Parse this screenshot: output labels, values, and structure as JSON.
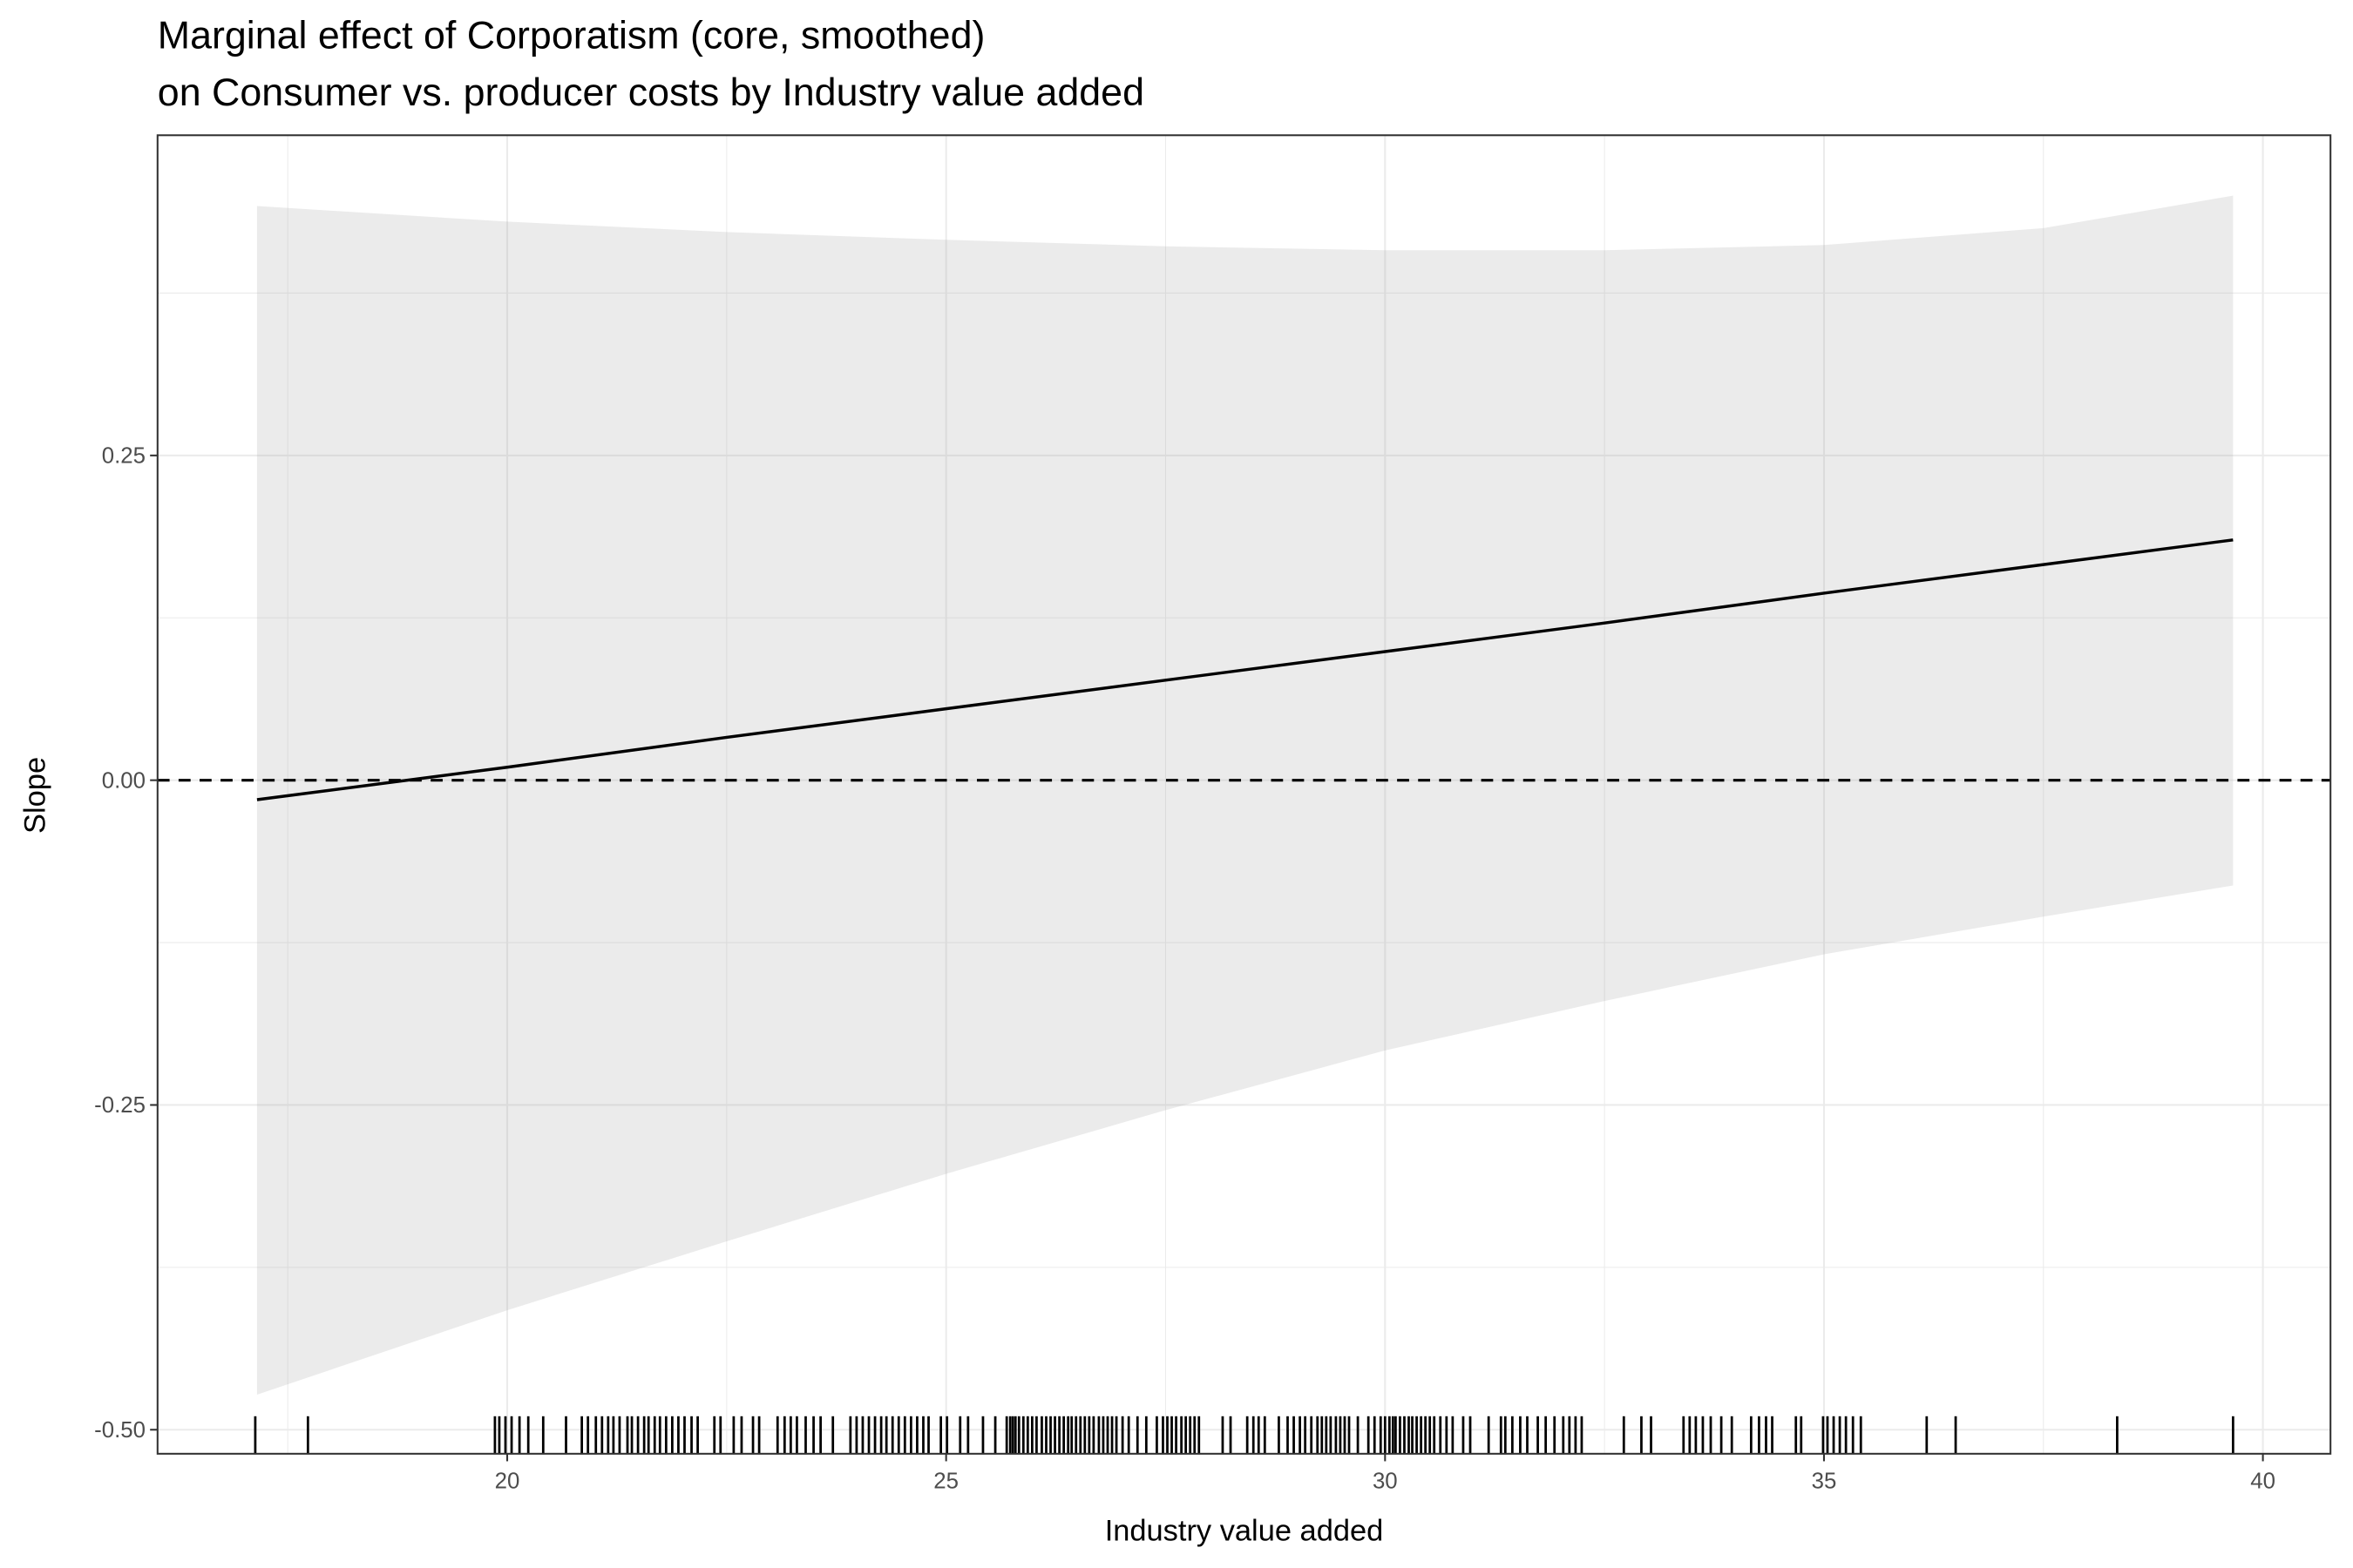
{
  "chart_data": {
    "type": "line",
    "title": [
      "Marginal effect of Corporatism (core, smoothed)",
      "on Consumer vs. producer costs by Industry value added"
    ],
    "xlabel": "Industry value added",
    "ylabel": "Slope",
    "x": [
      17.15,
      20,
      22.5,
      25,
      27.5,
      30,
      32.5,
      35,
      37.5,
      39.66
    ],
    "series": [
      {
        "color": "#000000",
        "values": [
          -0.015,
          0.01,
          0.033,
          0.055,
          0.077,
          0.099,
          0.121,
          0.144,
          0.166,
          0.185
        ]
      }
    ],
    "ribbon": {
      "color": "#999999",
      "alpha": 0.2,
      "upper": [
        0.442,
        0.43,
        0.422,
        0.416,
        0.411,
        0.408,
        0.408,
        0.412,
        0.425,
        0.45
      ],
      "lower": [
        -0.473,
        -0.408,
        -0.355,
        -0.303,
        -0.254,
        -0.208,
        -0.17,
        -0.134,
        -0.105,
        -0.081
      ]
    },
    "hline": {
      "value": 0,
      "style": "dashed",
      "color": "#000000"
    },
    "rug": [
      17.13,
      17.73,
      19.86,
      19.91,
      19.98,
      20.05,
      20.14,
      20.24,
      20.41,
      20.67,
      20.85,
      20.92,
      21.01,
      21.08,
      21.15,
      21.21,
      21.28,
      21.37,
      21.42,
      21.49,
      21.56,
      21.61,
      21.68,
      21.74,
      21.81,
      21.88,
      21.95,
      22.02,
      22.1,
      22.17,
      22.36,
      22.43,
      22.58,
      22.67,
      22.8,
      22.87,
      23.08,
      23.16,
      23.23,
      23.3,
      23.4,
      23.49,
      23.57,
      23.71,
      23.91,
      23.98,
      24.05,
      24.12,
      24.19,
      24.26,
      24.32,
      24.39,
      24.46,
      24.53,
      24.6,
      24.67,
      24.74,
      24.8,
      24.94,
      25.01,
      25.16,
      25.25,
      25.42,
      25.56,
      25.69,
      25.73,
      25.76,
      25.79,
      25.83,
      25.88,
      25.93,
      25.98,
      26.03,
      26.09,
      26.14,
      26.19,
      26.24,
      26.29,
      26.34,
      26.39,
      26.43,
      26.48,
      26.53,
      26.58,
      26.63,
      26.68,
      26.74,
      26.79,
      26.84,
      26.89,
      26.94,
      27.01,
      27.08,
      27.18,
      27.28,
      27.4,
      27.47,
      27.52,
      27.57,
      27.62,
      27.68,
      27.73,
      27.78,
      27.83,
      27.88,
      28.15,
      28.24,
      28.43,
      28.5,
      28.56,
      28.63,
      28.79,
      28.89,
      28.96,
      29.03,
      29.09,
      29.16,
      29.23,
      29.28,
      29.33,
      29.38,
      29.44,
      29.49,
      29.54,
      29.59,
      29.69,
      29.81,
      29.88,
      29.95,
      30.0,
      30.05,
      30.09,
      30.12,
      30.17,
      30.22,
      30.27,
      30.31,
      30.36,
      30.41,
      30.46,
      30.51,
      30.56,
      30.63,
      30.7,
      30.77,
      30.89,
      30.97,
      31.18,
      31.32,
      31.37,
      31.45,
      31.54,
      31.62,
      31.74,
      31.83,
      31.93,
      32.03,
      32.1,
      32.17,
      32.24,
      32.72,
      32.92,
      33.03,
      33.4,
      33.47,
      33.54,
      33.62,
      33.71,
      33.83,
      33.95,
      34.17,
      34.26,
      34.34,
      34.41,
      34.68,
      34.74,
      34.99,
      35.04,
      35.11,
      35.18,
      35.25,
      35.33,
      35.42,
      36.17,
      36.5,
      38.34,
      39.66
    ],
    "xlim": [
      16.017,
      40.77
    ],
    "ylim": [
      -0.5185,
      0.4965
    ],
    "xticks": [
      20,
      25,
      30,
      35,
      40
    ],
    "yticks": [
      {
        "value": -0.5,
        "label": "-0.50"
      },
      -0.25,
      {
        "value": 0,
        "label": "0.00"
      },
      0.25
    ],
    "xminor": [
      17.5,
      22.5,
      27.5,
      32.5,
      37.5
    ],
    "yminor": [
      -0.375,
      -0.125,
      0.125,
      0.375
    ],
    "grid": true
  }
}
